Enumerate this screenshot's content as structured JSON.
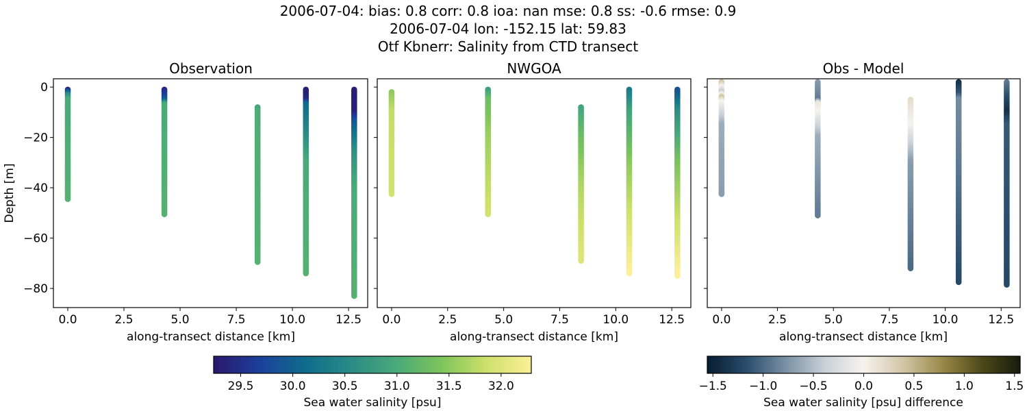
{
  "title_lines": [
    "2006-07-04: bias: 0.8  corr: 0.8  ioa: nan  mse: 0.8  ss: -0.6  rmse: 0.9",
    "2006-07-04 lon: -152.15 lat: 59.83",
    "Otf Kbnerr: Salinity from CTD transect"
  ],
  "chart_data": [
    {
      "type": "scatter",
      "title": "Observation",
      "xlabel": "along-transect distance [km]",
      "ylabel": "Depth [m]",
      "xlim": [
        -0.64,
        13.35
      ],
      "ylim": [
        -87.6,
        3.3
      ],
      "xticks": [
        0.0,
        2.5,
        5.0,
        7.5,
        10.0,
        12.5
      ],
      "xtick_labels": [
        "0.0",
        "2.5",
        "5.0",
        "7.5",
        "10.0",
        "12.5"
      ],
      "yticks": [
        0,
        -20,
        -40,
        -60,
        -80
      ],
      "ytick_labels": [
        "0",
        "−20",
        "−40",
        "−60",
        "−80"
      ],
      "colormap": "haline",
      "profiles": [
        {
          "x": 0.0,
          "points": [
            [
              -1,
              29.4
            ],
            [
              -3,
              30.5
            ],
            [
              -5,
              31.0
            ],
            [
              -44.5,
              31.1
            ]
          ]
        },
        {
          "x": 4.3,
          "points": [
            [
              -1,
              29.4
            ],
            [
              -5,
              29.9
            ],
            [
              -7,
              31.0
            ],
            [
              -50.5,
              31.1
            ]
          ]
        },
        {
          "x": 8.45,
          "points": [
            [
              -8,
              30.9
            ],
            [
              -10,
              31.05
            ],
            [
              -69.5,
              31.1
            ]
          ]
        },
        {
          "x": 10.6,
          "points": [
            [
              -1,
              29.3
            ],
            [
              -5,
              29.4
            ],
            [
              -7,
              30.1
            ],
            [
              -20,
              30.6
            ],
            [
              -30,
              31.0
            ],
            [
              -74,
              31.1
            ]
          ]
        },
        {
          "x": 12.75,
          "points": [
            [
              -1,
              29.3
            ],
            [
              -10,
              29.35
            ],
            [
              -14,
              29.9
            ],
            [
              -25,
              30.6
            ],
            [
              -40,
              31.0
            ],
            [
              -83,
              31.1
            ]
          ]
        }
      ]
    },
    {
      "type": "scatter",
      "title": "NWGOA",
      "xlabel": "along-transect distance [km]",
      "xlim": [
        -0.64,
        13.35
      ],
      "ylim": [
        -87.6,
        3.3
      ],
      "xticks": [
        0.0,
        2.5,
        5.0,
        7.5,
        10.0,
        12.5
      ],
      "xtick_labels": [
        "0.0",
        "2.5",
        "5.0",
        "7.5",
        "10.0",
        "12.5"
      ],
      "yticks": [
        0,
        -20,
        -40,
        -60,
        -80
      ],
      "colormap": "haline",
      "profiles": [
        {
          "x": 0.0,
          "points": [
            [
              -2,
              31.5
            ],
            [
              -10,
              31.8
            ],
            [
              -42.5,
              31.9
            ]
          ]
        },
        {
          "x": 4.3,
          "points": [
            [
              -1,
              30.8
            ],
            [
              -5,
              31.3
            ],
            [
              -20,
              31.6
            ],
            [
              -50.5,
              31.9
            ]
          ]
        },
        {
          "x": 8.45,
          "points": [
            [
              -8,
              30.9
            ],
            [
              -20,
              31.3
            ],
            [
              -40,
              31.7
            ],
            [
              -69,
              32.0
            ]
          ]
        },
        {
          "x": 10.6,
          "points": [
            [
              -1,
              30.3
            ],
            [
              -10,
              30.9
            ],
            [
              -30,
              31.5
            ],
            [
              -74,
              32.3
            ]
          ]
        },
        {
          "x": 12.75,
          "points": [
            [
              -1,
              29.8
            ],
            [
              -10,
              30.6
            ],
            [
              -30,
              31.4
            ],
            [
              -75,
              32.3
            ]
          ]
        }
      ]
    },
    {
      "type": "scatter",
      "title": "Obs - Model",
      "xlabel": "along-transect distance [km]",
      "xlim": [
        -0.64,
        13.35
      ],
      "ylim": [
        -87.6,
        3.3
      ],
      "xticks": [
        0.0,
        2.5,
        5.0,
        7.5,
        10.0,
        12.5
      ],
      "xtick_labels": [
        "0.0",
        "2.5",
        "5.0",
        "7.5",
        "10.0",
        "12.5"
      ],
      "yticks": [
        0,
        -20,
        -40,
        -60,
        -80
      ],
      "colormap": "diff",
      "profiles": [
        {
          "x": 0.0,
          "points": [
            [
              2,
              0.4
            ],
            [
              -2,
              -0.4
            ],
            [
              -4,
              0.4
            ],
            [
              -6,
              0
            ],
            [
              -15,
              -0.6
            ],
            [
              -42.5,
              -0.7
            ]
          ]
        },
        {
          "x": 4.3,
          "points": [
            [
              2,
              -0.7
            ],
            [
              -5,
              -0.9
            ],
            [
              -7,
              0.1
            ],
            [
              -10,
              0
            ],
            [
              -20,
              -0.6
            ],
            [
              -51,
              -0.9
            ]
          ]
        },
        {
          "x": 8.45,
          "points": [
            [
              -5,
              0.2
            ],
            [
              -10,
              0.1
            ],
            [
              -15,
              0
            ],
            [
              -30,
              -0.7
            ],
            [
              -72,
              -1.0
            ]
          ]
        },
        {
          "x": 10.6,
          "points": [
            [
              2,
              -1.4
            ],
            [
              -3,
              -1.1
            ],
            [
              -5,
              -0.8
            ],
            [
              -30,
              -0.9
            ],
            [
              -77.5,
              -1.2
            ]
          ]
        },
        {
          "x": 12.75,
          "points": [
            [
              2,
              -0.9
            ],
            [
              -5,
              -1.2
            ],
            [
              -10,
              -1.4
            ],
            [
              -15,
              -1.1
            ],
            [
              -78.5,
              -1.2
            ]
          ]
        }
      ]
    }
  ],
  "colorbars": [
    {
      "label": "Sea water salinity [psu]",
      "colormap": "haline",
      "range": [
        29.24,
        32.29
      ],
      "ticks": [
        29.5,
        30.0,
        30.5,
        31.0,
        31.5,
        32.0
      ],
      "tick_labels": [
        "29.5",
        "30.0",
        "30.5",
        "31.0",
        "31.5",
        "32.0"
      ],
      "stops": [
        "#2a186c",
        "#1c3f9b",
        "#0f6b8c",
        "#2a8a86",
        "#48a97a",
        "#7cc35c",
        "#cde06a",
        "#fdef9a"
      ]
    },
    {
      "label": "Sea water salinity [psu] difference",
      "colormap": "diff",
      "range": [
        -1.556,
        1.556
      ],
      "ticks": [
        -1.5,
        -1.0,
        -0.5,
        0.0,
        0.5,
        1.0,
        1.5
      ],
      "tick_labels": [
        "−1.5",
        "−1.0",
        "−0.5",
        "0.0",
        "0.5",
        "1.0",
        "1.5"
      ],
      "stops": [
        "#071c30",
        "#2a4d6c",
        "#7890a4",
        "#c9d0d7",
        "#f6f3ef",
        "#d2c6a6",
        "#9a8a4a",
        "#4f4a1a",
        "#161c0c"
      ]
    }
  ]
}
